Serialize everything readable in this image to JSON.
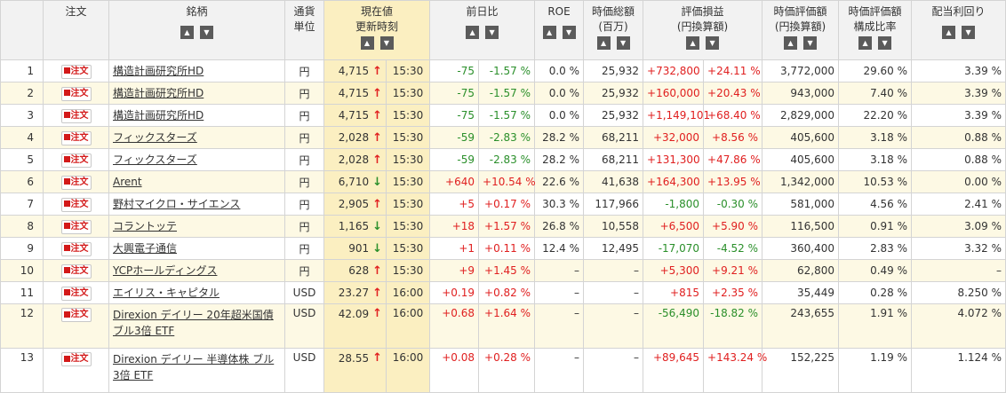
{
  "headers": {
    "order": "注文",
    "name": "銘柄",
    "currency_l1": "通貨",
    "currency_l2": "単位",
    "price_l1": "現在値",
    "price_l2": "更新時刻",
    "change": "前日比",
    "roe": "ROE",
    "mcap_l1": "時価総額",
    "mcap_l2": "(百万)",
    "pl_l1": "評価損益",
    "pl_l2": "(円換算額)",
    "value_l1": "時価評価額",
    "value_l2": "(円換算額)",
    "ratio_l1": "時価評価額",
    "ratio_l2": "構成比率",
    "yield": "配当利回り"
  },
  "order_label": "注文",
  "colors": {
    "positive": "#e02020",
    "negative": "#2a8f2a",
    "price_bg": "#fbefc1",
    "alt_row": "#fdf9e4"
  },
  "rows": [
    {
      "idx": "1",
      "name": "構造計画研究所HD",
      "currency": "円",
      "price": "4,715",
      "dir": "up",
      "time": "15:30",
      "chg": "-75",
      "chg_pct": "-1.57 %",
      "roe": "0.0 %",
      "mcap": "25,932",
      "pl": "+732,800",
      "pl_pct": "+24.11 %",
      "value": "3,772,000",
      "ratio": "29.60 %",
      "yield": "3.39 %"
    },
    {
      "idx": "2",
      "name": "構造計画研究所HD",
      "currency": "円",
      "price": "4,715",
      "dir": "up",
      "time": "15:30",
      "chg": "-75",
      "chg_pct": "-1.57 %",
      "roe": "0.0 %",
      "mcap": "25,932",
      "pl": "+160,000",
      "pl_pct": "+20.43 %",
      "value": "943,000",
      "ratio": "7.40 %",
      "yield": "3.39 %"
    },
    {
      "idx": "3",
      "name": "構造計画研究所HD",
      "currency": "円",
      "price": "4,715",
      "dir": "up",
      "time": "15:30",
      "chg": "-75",
      "chg_pct": "-1.57 %",
      "roe": "0.0 %",
      "mcap": "25,932",
      "pl": "+1,149,101",
      "pl_pct": "+68.40 %",
      "value": "2,829,000",
      "ratio": "22.20 %",
      "yield": "3.39 %"
    },
    {
      "idx": "4",
      "name": "フィックスターズ",
      "currency": "円",
      "price": "2,028",
      "dir": "up",
      "time": "15:30",
      "chg": "-59",
      "chg_pct": "-2.83 %",
      "roe": "28.2 %",
      "mcap": "68,211",
      "pl": "+32,000",
      "pl_pct": "+8.56 %",
      "value": "405,600",
      "ratio": "3.18 %",
      "yield": "0.88 %"
    },
    {
      "idx": "5",
      "name": "フィックスターズ",
      "currency": "円",
      "price": "2,028",
      "dir": "up",
      "time": "15:30",
      "chg": "-59",
      "chg_pct": "-2.83 %",
      "roe": "28.2 %",
      "mcap": "68,211",
      "pl": "+131,300",
      "pl_pct": "+47.86 %",
      "value": "405,600",
      "ratio": "3.18 %",
      "yield": "0.88 %"
    },
    {
      "idx": "6",
      "name": "Arent",
      "currency": "円",
      "price": "6,710",
      "dir": "down",
      "time": "15:30",
      "chg": "+640",
      "chg_pct": "+10.54 %",
      "roe": "22.6 %",
      "mcap": "41,638",
      "pl": "+164,300",
      "pl_pct": "+13.95 %",
      "value": "1,342,000",
      "ratio": "10.53 %",
      "yield": "0.00 %"
    },
    {
      "idx": "7",
      "name": "野村マイクロ・サイエンス",
      "currency": "円",
      "price": "2,905",
      "dir": "up",
      "time": "15:30",
      "chg": "+5",
      "chg_pct": "+0.17 %",
      "roe": "30.3 %",
      "mcap": "117,966",
      "pl": "-1,800",
      "pl_pct": "-0.30 %",
      "value": "581,000",
      "ratio": "4.56 %",
      "yield": "2.41 %"
    },
    {
      "idx": "8",
      "name": "コラントッテ",
      "currency": "円",
      "price": "1,165",
      "dir": "down",
      "time": "15:30",
      "chg": "+18",
      "chg_pct": "+1.57 %",
      "roe": "26.8 %",
      "mcap": "10,558",
      "pl": "+6,500",
      "pl_pct": "+5.90 %",
      "value": "116,500",
      "ratio": "0.91 %",
      "yield": "3.09 %"
    },
    {
      "idx": "9",
      "name": "大興電子通信",
      "currency": "円",
      "price": "901",
      "dir": "down",
      "time": "15:30",
      "chg": "+1",
      "chg_pct": "+0.11 %",
      "roe": "12.4 %",
      "mcap": "12,495",
      "pl": "-17,070",
      "pl_pct": "-4.52 %",
      "value": "360,400",
      "ratio": "2.83 %",
      "yield": "3.32 %"
    },
    {
      "idx": "10",
      "name": "YCPホールディングス",
      "currency": "円",
      "price": "628",
      "dir": "up",
      "time": "15:30",
      "chg": "+9",
      "chg_pct": "+1.45 %",
      "roe": "–",
      "mcap": "–",
      "pl": "+5,300",
      "pl_pct": "+9.21 %",
      "value": "62,800",
      "ratio": "0.49 %",
      "yield": "–"
    },
    {
      "idx": "11",
      "name": "エイリス・キャピタル",
      "currency": "USD",
      "price": "23.27",
      "dir": "up",
      "time": "16:00",
      "chg": "+0.19",
      "chg_pct": "+0.82 %",
      "roe": "–",
      "mcap": "–",
      "pl": "+815",
      "pl_pct": "+2.35 %",
      "value": "35,449",
      "ratio": "0.28 %",
      "yield": "8.250 %"
    },
    {
      "idx": "12",
      "name": "Direxion デイリー 20年超米国債 ブル3倍 ETF",
      "currency": "USD",
      "price": "42.09",
      "dir": "up",
      "time": "16:00",
      "chg": "+0.68",
      "chg_pct": "+1.64 %",
      "roe": "–",
      "mcap": "–",
      "pl": "-56,490",
      "pl_pct": "-18.82 %",
      "value": "243,655",
      "ratio": "1.91 %",
      "yield": "4.072 %"
    },
    {
      "idx": "13",
      "name": "Direxion デイリー 半導体株 ブル 3倍 ETF",
      "currency": "USD",
      "price": "28.55",
      "dir": "up",
      "time": "16:00",
      "chg": "+0.08",
      "chg_pct": "+0.28 %",
      "roe": "–",
      "mcap": "–",
      "pl": "+89,645",
      "pl_pct": "+143.24 %",
      "value": "152,225",
      "ratio": "1.19 %",
      "yield": "1.124 %"
    }
  ]
}
